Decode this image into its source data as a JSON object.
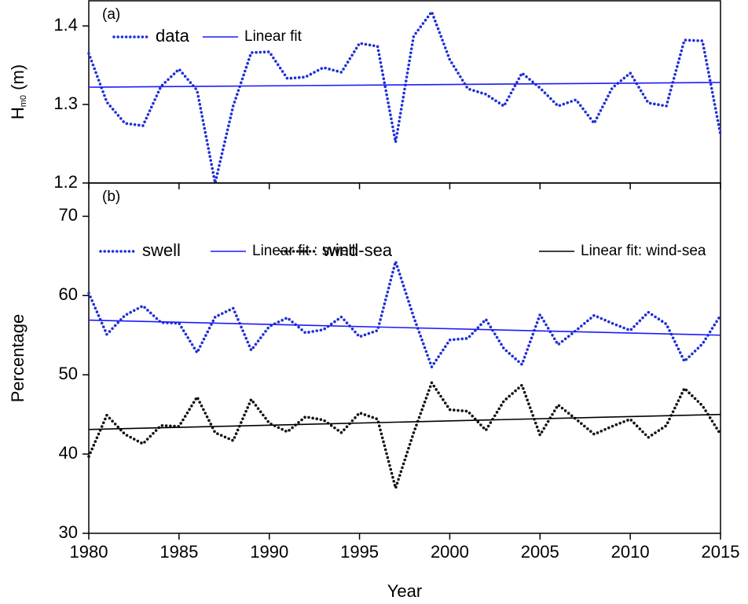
{
  "chart_data": [
    {
      "type": "line",
      "annotation": "(a)",
      "ylabel_parts": [
        "H",
        "m0",
        " (m)"
      ],
      "x": [
        1980,
        1981,
        1982,
        1983,
        1984,
        1985,
        1986,
        1987,
        1988,
        1989,
        1990,
        1991,
        1992,
        1993,
        1994,
        1995,
        1996,
        1997,
        1998,
        1999,
        2000,
        2001,
        2002,
        2003,
        2004,
        2005,
        2006,
        2007,
        2008,
        2009,
        2010,
        2011,
        2012,
        2013,
        2014,
        2015
      ],
      "series": [
        {
          "name": "data",
          "color": "#1f2fd6",
          "style": "dotted",
          "values": [
            1.365,
            1.303,
            1.276,
            1.273,
            1.323,
            1.345,
            1.318,
            1.2,
            1.298,
            1.366,
            1.367,
            1.333,
            1.335,
            1.347,
            1.341,
            1.378,
            1.374,
            1.252,
            1.387,
            1.418,
            1.357,
            1.32,
            1.313,
            1.298,
            1.34,
            1.321,
            1.298,
            1.306,
            1.276,
            1.321,
            1.34,
            1.302,
            1.298,
            1.382,
            1.381,
            1.262
          ]
        },
        {
          "name": "Linear fit",
          "color": "#1a1aff",
          "style": "solid",
          "x": [
            1980,
            2015
          ],
          "values": [
            1.322,
            1.328
          ]
        }
      ],
      "xlim": [
        1980,
        2015
      ],
      "xticks": [
        1980,
        1985,
        1990,
        1995,
        2000,
        2005,
        2010,
        2015
      ],
      "xtick_labels": false,
      "ylim": [
        1.2,
        1.432
      ],
      "yticks": [
        1.2,
        1.3,
        1.4
      ]
    },
    {
      "type": "line",
      "annotation": "(b)",
      "ylabel": "Percentage",
      "xlabel": "Year",
      "x": [
        1980,
        1981,
        1982,
        1983,
        1984,
        1985,
        1986,
        1987,
        1988,
        1989,
        1990,
        1991,
        1992,
        1993,
        1994,
        1995,
        1996,
        1997,
        1998,
        1999,
        2000,
        2001,
        2002,
        2003,
        2004,
        2005,
        2006,
        2007,
        2008,
        2009,
        2010,
        2011,
        2012,
        2013,
        2014,
        2015
      ],
      "series": [
        {
          "name": "swell",
          "color": "#1f2fd6",
          "style": "dotted",
          "values": [
            60.3,
            55.1,
            57.5,
            58.7,
            56.6,
            56.5,
            52.8,
            57.3,
            58.4,
            53.1,
            56.1,
            57.2,
            55.3,
            55.7,
            57.3,
            54.8,
            55.6,
            64.3,
            57.3,
            51.0,
            54.4,
            54.6,
            57.0,
            53.3,
            51.3,
            57.6,
            53.8,
            55.6,
            57.5,
            56.5,
            55.6,
            57.9,
            56.4,
            51.7,
            53.9,
            57.5
          ]
        },
        {
          "name": "Linear fit : swell",
          "color": "#1a1aff",
          "style": "solid",
          "x": [
            1980,
            2015
          ],
          "values": [
            56.9,
            55.0
          ]
        },
        {
          "name": "wind-sea",
          "color": "#111111",
          "style": "dotted",
          "values": [
            39.7,
            44.9,
            42.5,
            41.3,
            43.6,
            43.5,
            47.2,
            42.7,
            41.7,
            46.9,
            43.9,
            42.8,
            44.7,
            44.3,
            42.7,
            45.2,
            44.4,
            35.7,
            42.7,
            49.0,
            45.6,
            45.4,
            43.0,
            46.7,
            48.7,
            42.4,
            46.2,
            44.4,
            42.5,
            43.5,
            44.4,
            42.1,
            43.6,
            48.3,
            46.1,
            42.5
          ]
        },
        {
          "name": "Linear fit: wind-sea",
          "color": "#000000",
          "style": "solid",
          "x": [
            1980,
            2015
          ],
          "values": [
            43.1,
            45.0
          ]
        }
      ],
      "xlim": [
        1980,
        2015
      ],
      "xticks": [
        1980,
        1985,
        1990,
        1995,
        2000,
        2005,
        2010,
        2015
      ],
      "xtick_labels": true,
      "ylim": [
        30,
        74.2
      ],
      "yticks": [
        30,
        40,
        50,
        60,
        70
      ]
    }
  ]
}
